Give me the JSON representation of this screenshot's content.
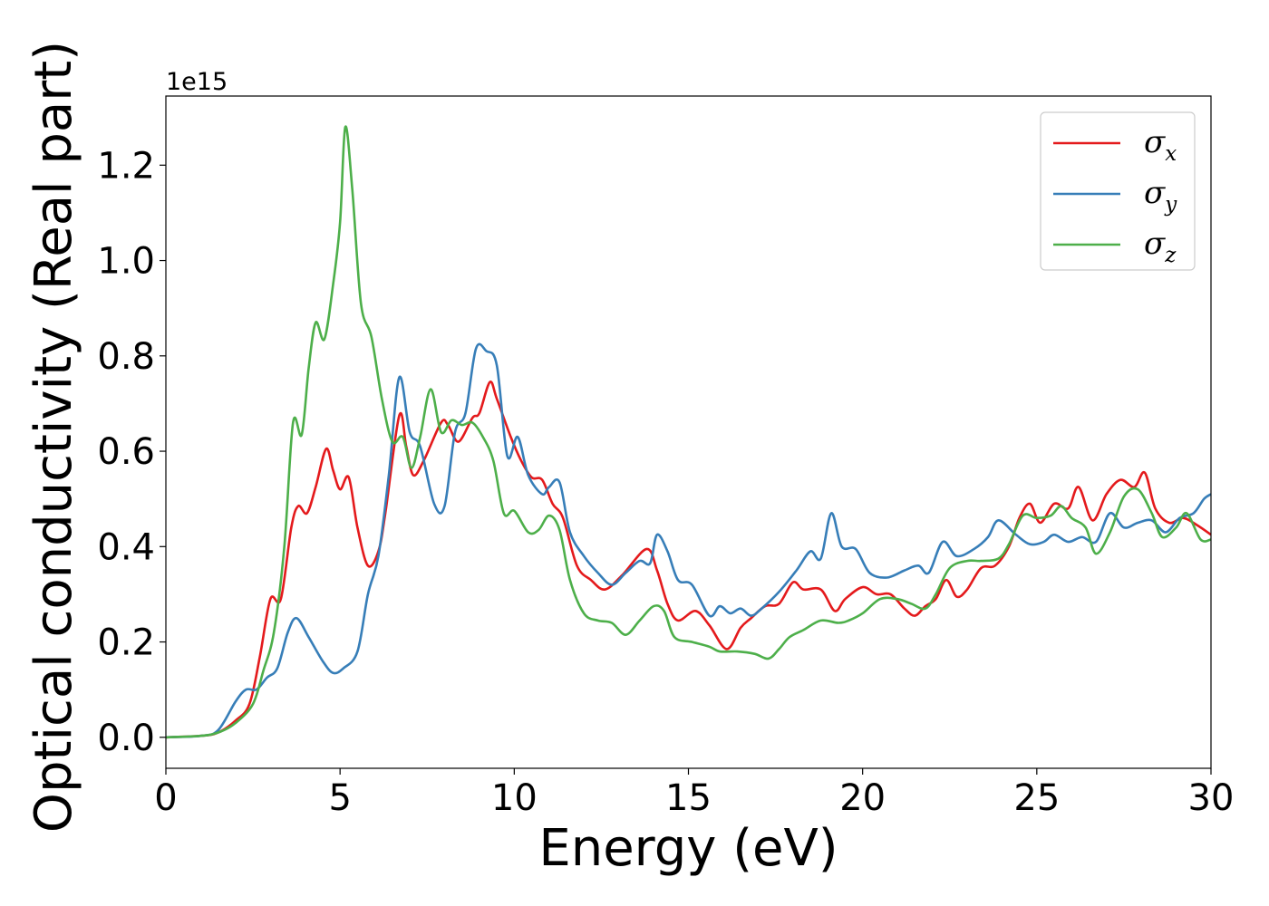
{
  "chart_data": {
    "type": "line",
    "xlabel": "Energy (eV)",
    "ylabel": "Optical conductivity (Real part)",
    "y_offset_label": "1e15",
    "xlim": [
      0,
      30
    ],
    "ylim": [
      -0.065,
      1.345
    ],
    "x_ticks": [
      0,
      5,
      10,
      15,
      20,
      25,
      30
    ],
    "x_tick_labels": [
      "0",
      "5",
      "10",
      "15",
      "20",
      "25",
      "30"
    ],
    "y_ticks": [
      0.0,
      0.2,
      0.4,
      0.6,
      0.8,
      1.0,
      1.2
    ],
    "y_tick_labels": [
      "0.0",
      "0.2",
      "0.4",
      "0.6",
      "0.8",
      "1.0",
      "1.2"
    ],
    "grid": false,
    "legend_position": "top-right",
    "series": [
      {
        "name": "σx",
        "symbol": "σ",
        "subscript": "x",
        "color": "#e41a1c",
        "points": [
          [
            0,
            0
          ],
          [
            1,
            0.003
          ],
          [
            1.5,
            0.01
          ],
          [
            2,
            0.035
          ],
          [
            2.4,
            0.07
          ],
          [
            2.7,
            0.17
          ],
          [
            3.0,
            0.29
          ],
          [
            3.3,
            0.29
          ],
          [
            3.6,
            0.44
          ],
          [
            3.8,
            0.485
          ],
          [
            4.05,
            0.47
          ],
          [
            4.3,
            0.525
          ],
          [
            4.6,
            0.605
          ],
          [
            4.8,
            0.56
          ],
          [
            5.0,
            0.52
          ],
          [
            5.25,
            0.545
          ],
          [
            5.5,
            0.44
          ],
          [
            5.8,
            0.36
          ],
          [
            6.1,
            0.39
          ],
          [
            6.3,
            0.47
          ],
          [
            6.7,
            0.675
          ],
          [
            6.9,
            0.61
          ],
          [
            7.1,
            0.55
          ],
          [
            7.4,
            0.58
          ],
          [
            7.9,
            0.66
          ],
          [
            8.1,
            0.655
          ],
          [
            8.4,
            0.62
          ],
          [
            8.8,
            0.67
          ],
          [
            9.0,
            0.68
          ],
          [
            9.3,
            0.745
          ],
          [
            9.5,
            0.71
          ],
          [
            9.9,
            0.63
          ],
          [
            10.2,
            0.58
          ],
          [
            10.5,
            0.545
          ],
          [
            10.8,
            0.54
          ],
          [
            11.1,
            0.49
          ],
          [
            11.4,
            0.46
          ],
          [
            11.8,
            0.36
          ],
          [
            12.2,
            0.33
          ],
          [
            12.6,
            0.31
          ],
          [
            13.1,
            0.34
          ],
          [
            13.8,
            0.395
          ],
          [
            14.1,
            0.35
          ],
          [
            14.4,
            0.28
          ],
          [
            14.7,
            0.245
          ],
          [
            15.2,
            0.265
          ],
          [
            15.6,
            0.235
          ],
          [
            16.1,
            0.185
          ],
          [
            16.5,
            0.23
          ],
          [
            16.8,
            0.25
          ],
          [
            17.2,
            0.275
          ],
          [
            17.6,
            0.28
          ],
          [
            18.0,
            0.325
          ],
          [
            18.3,
            0.31
          ],
          [
            18.8,
            0.31
          ],
          [
            19.2,
            0.265
          ],
          [
            19.5,
            0.29
          ],
          [
            20.0,
            0.315
          ],
          [
            20.4,
            0.3
          ],
          [
            20.8,
            0.3
          ],
          [
            21.2,
            0.27
          ],
          [
            21.5,
            0.255
          ],
          [
            21.8,
            0.275
          ],
          [
            22.1,
            0.29
          ],
          [
            22.4,
            0.33
          ],
          [
            22.7,
            0.295
          ],
          [
            23.0,
            0.31
          ],
          [
            23.4,
            0.355
          ],
          [
            23.8,
            0.36
          ],
          [
            24.2,
            0.4
          ],
          [
            24.5,
            0.46
          ],
          [
            24.8,
            0.49
          ],
          [
            25.1,
            0.45
          ],
          [
            25.5,
            0.49
          ],
          [
            25.9,
            0.48
          ],
          [
            26.2,
            0.525
          ],
          [
            26.6,
            0.455
          ],
          [
            27.0,
            0.51
          ],
          [
            27.4,
            0.54
          ],
          [
            27.8,
            0.525
          ],
          [
            28.1,
            0.555
          ],
          [
            28.4,
            0.48
          ],
          [
            28.8,
            0.45
          ],
          [
            29.2,
            0.46
          ],
          [
            29.6,
            0.445
          ],
          [
            30,
            0.425
          ]
        ]
      },
      {
        "name": "σy",
        "symbol": "σ",
        "subscript": "y",
        "color": "#377eb8",
        "points": [
          [
            0,
            0
          ],
          [
            1,
            0.003
          ],
          [
            1.5,
            0.015
          ],
          [
            2.0,
            0.075
          ],
          [
            2.3,
            0.1
          ],
          [
            2.6,
            0.1
          ],
          [
            2.9,
            0.125
          ],
          [
            3.2,
            0.145
          ],
          [
            3.5,
            0.22
          ],
          [
            3.75,
            0.25
          ],
          [
            4.1,
            0.21
          ],
          [
            4.5,
            0.16
          ],
          [
            4.8,
            0.135
          ],
          [
            5.1,
            0.145
          ],
          [
            5.5,
            0.18
          ],
          [
            5.8,
            0.3
          ],
          [
            6.1,
            0.38
          ],
          [
            6.4,
            0.55
          ],
          [
            6.7,
            0.755
          ],
          [
            7.0,
            0.64
          ],
          [
            7.3,
            0.61
          ],
          [
            7.7,
            0.49
          ],
          [
            8.0,
            0.485
          ],
          [
            8.3,
            0.64
          ],
          [
            8.6,
            0.68
          ],
          [
            8.9,
            0.815
          ],
          [
            9.2,
            0.81
          ],
          [
            9.5,
            0.78
          ],
          [
            9.8,
            0.59
          ],
          [
            10.1,
            0.63
          ],
          [
            10.4,
            0.55
          ],
          [
            10.8,
            0.51
          ],
          [
            11.0,
            0.525
          ],
          [
            11.3,
            0.535
          ],
          [
            11.6,
            0.43
          ],
          [
            12.0,
            0.38
          ],
          [
            12.4,
            0.345
          ],
          [
            12.8,
            0.32
          ],
          [
            13.2,
            0.345
          ],
          [
            13.6,
            0.37
          ],
          [
            13.9,
            0.365
          ],
          [
            14.1,
            0.425
          ],
          [
            14.4,
            0.39
          ],
          [
            14.7,
            0.33
          ],
          [
            15.1,
            0.32
          ],
          [
            15.6,
            0.255
          ],
          [
            15.9,
            0.275
          ],
          [
            16.2,
            0.26
          ],
          [
            16.5,
            0.27
          ],
          [
            16.8,
            0.255
          ],
          [
            17.1,
            0.27
          ],
          [
            17.6,
            0.305
          ],
          [
            18.1,
            0.35
          ],
          [
            18.5,
            0.39
          ],
          [
            18.8,
            0.375
          ],
          [
            19.1,
            0.47
          ],
          [
            19.4,
            0.4
          ],
          [
            19.8,
            0.395
          ],
          [
            20.2,
            0.345
          ],
          [
            20.7,
            0.335
          ],
          [
            21.2,
            0.35
          ],
          [
            21.6,
            0.36
          ],
          [
            21.9,
            0.345
          ],
          [
            22.3,
            0.41
          ],
          [
            22.7,
            0.38
          ],
          [
            23.2,
            0.395
          ],
          [
            23.6,
            0.42
          ],
          [
            23.9,
            0.455
          ],
          [
            24.4,
            0.425
          ],
          [
            24.8,
            0.405
          ],
          [
            25.2,
            0.41
          ],
          [
            25.5,
            0.425
          ],
          [
            25.9,
            0.41
          ],
          [
            26.3,
            0.42
          ],
          [
            26.7,
            0.41
          ],
          [
            27.1,
            0.47
          ],
          [
            27.5,
            0.44
          ],
          [
            27.9,
            0.45
          ],
          [
            28.3,
            0.455
          ],
          [
            28.7,
            0.43
          ],
          [
            29.1,
            0.46
          ],
          [
            29.5,
            0.47
          ],
          [
            29.8,
            0.5
          ],
          [
            30,
            0.51
          ]
        ]
      },
      {
        "name": "σz",
        "symbol": "σ",
        "subscript": "z",
        "color": "#4daf4a",
        "points": [
          [
            0,
            0
          ],
          [
            1,
            0.003
          ],
          [
            1.5,
            0.01
          ],
          [
            2,
            0.03
          ],
          [
            2.5,
            0.07
          ],
          [
            2.8,
            0.14
          ],
          [
            3.1,
            0.22
          ],
          [
            3.4,
            0.4
          ],
          [
            3.65,
            0.66
          ],
          [
            3.9,
            0.635
          ],
          [
            4.1,
            0.775
          ],
          [
            4.3,
            0.87
          ],
          [
            4.55,
            0.835
          ],
          [
            4.8,
            0.95
          ],
          [
            5.0,
            1.08
          ],
          [
            5.15,
            1.28
          ],
          [
            5.35,
            1.15
          ],
          [
            5.6,
            0.91
          ],
          [
            5.9,
            0.84
          ],
          [
            6.2,
            0.71
          ],
          [
            6.5,
            0.62
          ],
          [
            6.8,
            0.63
          ],
          [
            7.05,
            0.565
          ],
          [
            7.3,
            0.63
          ],
          [
            7.6,
            0.73
          ],
          [
            7.9,
            0.64
          ],
          [
            8.2,
            0.665
          ],
          [
            8.5,
            0.655
          ],
          [
            8.8,
            0.66
          ],
          [
            9.1,
            0.63
          ],
          [
            9.4,
            0.58
          ],
          [
            9.7,
            0.47
          ],
          [
            10.0,
            0.475
          ],
          [
            10.4,
            0.43
          ],
          [
            10.7,
            0.435
          ],
          [
            11.0,
            0.465
          ],
          [
            11.3,
            0.435
          ],
          [
            11.6,
            0.33
          ],
          [
            12.0,
            0.26
          ],
          [
            12.4,
            0.245
          ],
          [
            12.8,
            0.24
          ],
          [
            13.2,
            0.215
          ],
          [
            13.6,
            0.245
          ],
          [
            14.0,
            0.275
          ],
          [
            14.3,
            0.265
          ],
          [
            14.6,
            0.21
          ],
          [
            15.1,
            0.2
          ],
          [
            15.6,
            0.19
          ],
          [
            15.9,
            0.18
          ],
          [
            16.4,
            0.18
          ],
          [
            16.9,
            0.175
          ],
          [
            17.3,
            0.165
          ],
          [
            17.6,
            0.185
          ],
          [
            17.9,
            0.21
          ],
          [
            18.3,
            0.225
          ],
          [
            18.8,
            0.245
          ],
          [
            19.3,
            0.24
          ],
          [
            19.6,
            0.245
          ],
          [
            20.0,
            0.26
          ],
          [
            20.5,
            0.29
          ],
          [
            21.0,
            0.29
          ],
          [
            21.4,
            0.28
          ],
          [
            21.8,
            0.27
          ],
          [
            22.1,
            0.3
          ],
          [
            22.5,
            0.355
          ],
          [
            23.0,
            0.37
          ],
          [
            23.4,
            0.37
          ],
          [
            23.9,
            0.375
          ],
          [
            24.2,
            0.405
          ],
          [
            24.6,
            0.465
          ],
          [
            25.0,
            0.46
          ],
          [
            25.4,
            0.465
          ],
          [
            25.7,
            0.485
          ],
          [
            26.0,
            0.46
          ],
          [
            26.4,
            0.44
          ],
          [
            26.7,
            0.385
          ],
          [
            27.1,
            0.43
          ],
          [
            27.5,
            0.505
          ],
          [
            27.9,
            0.52
          ],
          [
            28.3,
            0.47
          ],
          [
            28.6,
            0.42
          ],
          [
            29.0,
            0.44
          ],
          [
            29.3,
            0.47
          ],
          [
            29.7,
            0.415
          ],
          [
            30,
            0.415
          ]
        ]
      }
    ]
  }
}
